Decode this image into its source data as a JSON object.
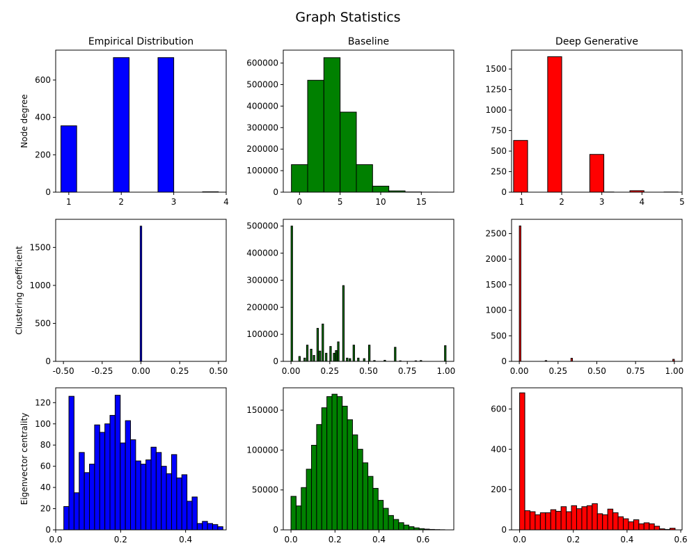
{
  "suptitle": "Graph Statistics",
  "colors": {
    "blue": "#0000ff",
    "green": "#008000",
    "red": "#ff0000",
    "edge": "#000000"
  },
  "chart_data": [
    {
      "type": "bar",
      "title": "Empirical Distribution",
      "ylabel": "Node degree",
      "color": "#0000ff",
      "xlim": [
        0.75,
        4.0
      ],
      "ylim": [
        0,
        760
      ],
      "xticks": [
        1,
        2,
        3,
        4
      ],
      "yticks": [
        0,
        200,
        400,
        600
      ],
      "bins": [
        [
          0.85,
          1.15,
          355
        ],
        [
          1.85,
          2.15,
          720
        ],
        [
          2.7,
          3.0,
          720
        ],
        [
          3.55,
          3.85,
          2
        ]
      ]
    },
    {
      "type": "bar",
      "title": "Baseline",
      "ylabel": "",
      "color": "#008000",
      "xlim": [
        -2.0,
        19.0
      ],
      "ylim": [
        0,
        660000
      ],
      "xticks": [
        0,
        5,
        10,
        15
      ],
      "yticks": [
        0,
        100000,
        200000,
        300000,
        400000,
        500000,
        600000
      ],
      "bins": [
        [
          -1,
          1,
          128000
        ],
        [
          1,
          3,
          520000
        ],
        [
          3,
          5,
          625000
        ],
        [
          5,
          7,
          372000
        ],
        [
          7,
          9,
          128000
        ],
        [
          9,
          11,
          28000
        ],
        [
          11,
          13,
          6000
        ],
        [
          13,
          15,
          1000
        ],
        [
          15,
          17,
          200
        ],
        [
          17,
          19,
          50
        ]
      ]
    },
    {
      "type": "bar",
      "title": "Deep Generative",
      "ylabel": "",
      "color": "#ff0000",
      "xlim": [
        0.75,
        5.0
      ],
      "ylim": [
        0,
        1730
      ],
      "xticks": [
        1,
        2,
        3,
        4,
        5
      ],
      "yticks": [
        0,
        250,
        500,
        750,
        1000,
        1250,
        1500
      ],
      "bins": [
        [
          0.8,
          1.15,
          630
        ],
        [
          1.65,
          2.0,
          1650
        ],
        [
          3.0,
          3.3,
          2
        ],
        [
          2.7,
          3.05,
          460
        ],
        [
          3.7,
          4.05,
          18
        ],
        [
          4.55,
          4.9,
          2
        ]
      ]
    },
    {
      "type": "bar",
      "title": "",
      "ylabel": "Clustering coefficient",
      "color": "#0000ff",
      "xlim": [
        -0.55,
        0.55
      ],
      "ylim": [
        0,
        1870
      ],
      "xticks": [
        -0.5,
        -0.25,
        0.0,
        0.25,
        0.5
      ],
      "yticks": [
        0,
        500,
        1000,
        1500
      ],
      "bins": [
        [
          -0.005,
          0.005,
          1780
        ]
      ]
    },
    {
      "type": "bar",
      "title": "",
      "ylabel": "",
      "color": "#008000",
      "xlim": [
        -0.05,
        1.05
      ],
      "ylim": [
        0,
        525000
      ],
      "xticks": [
        0.0,
        0.25,
        0.5,
        0.75,
        1.0
      ],
      "yticks": [
        0,
        100000,
        200000,
        300000,
        400000,
        500000
      ],
      "bins": [
        [
          0.0,
          0.01,
          500000
        ],
        [
          0.05,
          0.06,
          18000
        ],
        [
          0.083,
          0.093,
          12000
        ],
        [
          0.1,
          0.11,
          60000
        ],
        [
          0.125,
          0.135,
          45000
        ],
        [
          0.143,
          0.153,
          22000
        ],
        [
          0.167,
          0.177,
          122000
        ],
        [
          0.182,
          0.192,
          38000
        ],
        [
          0.2,
          0.21,
          138000
        ],
        [
          0.222,
          0.232,
          30000
        ],
        [
          0.25,
          0.26,
          55000
        ],
        [
          0.273,
          0.283,
          30000
        ],
        [
          0.286,
          0.296,
          40000
        ],
        [
          0.3,
          0.31,
          72000
        ],
        [
          0.333,
          0.343,
          280000
        ],
        [
          0.357,
          0.367,
          12000
        ],
        [
          0.375,
          0.385,
          10000
        ],
        [
          0.4,
          0.41,
          60000
        ],
        [
          0.429,
          0.439,
          12000
        ],
        [
          0.467,
          0.477,
          10000
        ],
        [
          0.5,
          0.51,
          60000
        ],
        [
          0.533,
          0.543,
          3000
        ],
        [
          0.6,
          0.61,
          4000
        ],
        [
          0.667,
          0.677,
          52000
        ],
        [
          0.7,
          0.71,
          2000
        ],
        [
          0.8,
          0.81,
          2000
        ],
        [
          0.833,
          0.843,
          3000
        ],
        [
          0.99,
          1.0,
          58000
        ]
      ]
    },
    {
      "type": "bar",
      "title": "",
      "ylabel": "",
      "color": "#ff0000",
      "xlim": [
        -0.05,
        1.05
      ],
      "ylim": [
        0,
        2780
      ],
      "xticks": [
        0.0,
        0.25,
        0.5,
        0.75,
        1.0
      ],
      "yticks": [
        0,
        500,
        1000,
        1500,
        2000,
        2500
      ],
      "bins": [
        [
          0.0,
          0.01,
          2650
        ],
        [
          0.167,
          0.177,
          15
        ],
        [
          0.333,
          0.343,
          60
        ],
        [
          0.99,
          1.0,
          40
        ]
      ]
    },
    {
      "type": "bar",
      "title": "",
      "ylabel": "Eigenvector centrality",
      "color": "#0000ff",
      "xlim": [
        0.0,
        0.525
      ],
      "ylim": [
        0,
        134
      ],
      "xticks": [
        0.0,
        0.2,
        0.4
      ],
      "yticks": [
        0,
        20,
        40,
        60,
        80,
        100,
        120
      ],
      "bin_start": 0.025,
      "bin_width": 0.0158,
      "values": [
        22,
        126,
        35,
        73,
        54,
        62,
        99,
        92,
        100,
        108,
        127,
        82,
        103,
        85,
        65,
        62,
        66,
        78,
        73,
        60,
        53,
        71,
        49,
        52,
        27,
        31,
        6,
        8,
        6,
        5,
        3
      ]
    },
    {
      "type": "bar",
      "title": "",
      "ylabel": "",
      "color": "#008000",
      "xlim": [
        -0.035,
        0.74
      ],
      "ylim": [
        0,
        178000
      ],
      "xticks": [
        0.0,
        0.2,
        0.4,
        0.6
      ],
      "yticks": [
        0,
        50000,
        100000,
        150000
      ],
      "bin_start": 0.0,
      "bin_width": 0.0233,
      "values": [
        42000,
        30000,
        53000,
        76000,
        106000,
        132000,
        153000,
        167000,
        170000,
        167000,
        155000,
        138000,
        119000,
        101000,
        84000,
        67000,
        52000,
        37000,
        27000,
        18000,
        13000,
        9000,
        6000,
        4000,
        2500,
        1500,
        900,
        500,
        300,
        150
      ]
    },
    {
      "type": "bar",
      "title": "",
      "ylabel": "",
      "color": "#ff0000",
      "xlim": [
        -0.03,
        0.605
      ],
      "ylim": [
        0,
        705
      ],
      "xticks": [
        0.0,
        0.2,
        0.4,
        0.6
      ],
      "yticks": [
        0,
        200,
        400,
        600
      ],
      "bin_start": 0.0,
      "bin_width": 0.0193,
      "values": [
        680,
        95,
        90,
        75,
        85,
        85,
        100,
        92,
        115,
        90,
        120,
        105,
        115,
        120,
        130,
        80,
        75,
        103,
        85,
        65,
        55,
        40,
        50,
        30,
        35,
        30,
        18,
        5,
        2,
        8
      ]
    }
  ]
}
